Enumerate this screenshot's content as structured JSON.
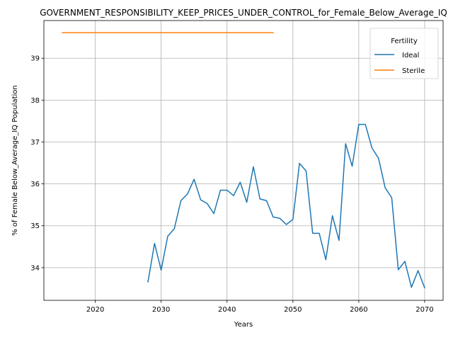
{
  "chart_data": {
    "type": "line",
    "title": "GOVERNMENT_RESPONSIBILITY_KEEP_PRICES_UNDER_CONTROL_for_Female_Below_Average_IQ",
    "xlabel": "Years",
    "ylabel": "% of Female Below_Average_IQ Population",
    "xlim": [
      2012.2,
      2072.8
    ],
    "ylim": [
      33.22,
      39.9
    ],
    "xticks": [
      2020,
      2030,
      2040,
      2050,
      2060,
      2070
    ],
    "yticks": [
      34,
      35,
      36,
      37,
      38,
      39
    ],
    "grid": true,
    "legend": {
      "title": "Fertility",
      "placement": "top-right"
    },
    "series": [
      {
        "name": "Ideal",
        "color": "#1f77b4",
        "x": [
          2028,
          2029,
          2030,
          2031,
          2032,
          2033,
          2034,
          2035,
          2036,
          2037,
          2038,
          2039,
          2040,
          2041,
          2042,
          2043,
          2044,
          2045,
          2046,
          2047,
          2048,
          2049,
          2050,
          2051,
          2052,
          2053,
          2054,
          2055,
          2056,
          2057,
          2058,
          2059,
          2060,
          2061,
          2062,
          2063,
          2064,
          2065,
          2066,
          2067,
          2068,
          2069,
          2070
        ],
        "y": [
          33.66,
          34.58,
          33.94,
          34.75,
          34.93,
          35.6,
          35.76,
          36.11,
          35.62,
          35.53,
          35.29,
          35.85,
          35.85,
          35.72,
          36.04,
          35.56,
          36.41,
          35.64,
          35.6,
          35.21,
          35.18,
          35.03,
          35.15,
          36.49,
          36.31,
          34.82,
          34.82,
          34.19,
          35.24,
          34.65,
          36.96,
          36.42,
          37.42,
          37.42,
          36.86,
          36.61,
          35.91,
          35.67,
          33.95,
          34.15,
          33.53,
          33.93,
          33.52
        ]
      },
      {
        "name": "Sterile",
        "color": "#ff7f0e",
        "x": [
          2015,
          2047
        ],
        "y": [
          39.61,
          39.61
        ]
      }
    ]
  }
}
